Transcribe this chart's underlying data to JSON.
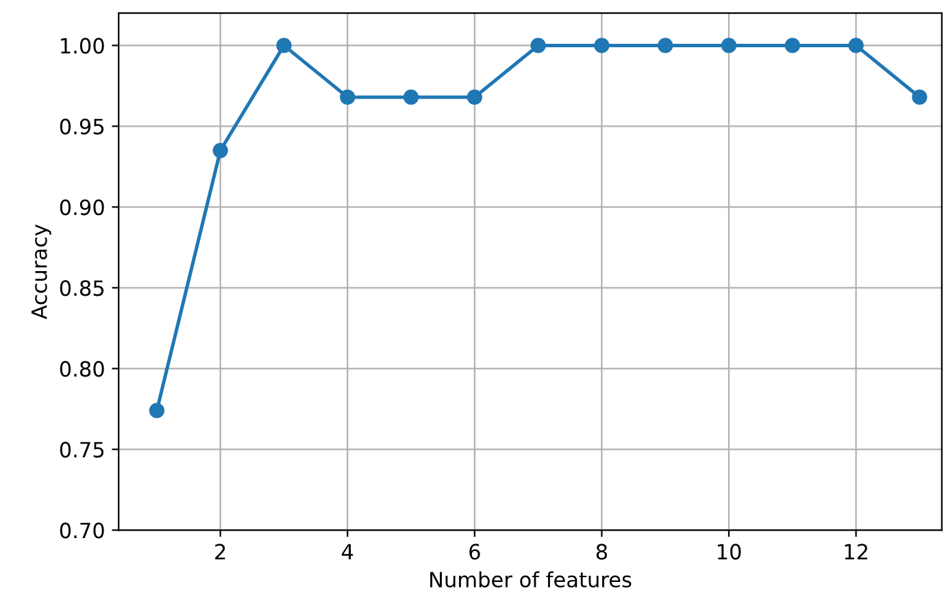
{
  "chart_data": {
    "type": "line",
    "xlabel": "Number of features",
    "ylabel": "Accuracy",
    "x": [
      1,
      2,
      3,
      4,
      5,
      6,
      7,
      8,
      9,
      10,
      11,
      12,
      13
    ],
    "series": [
      {
        "color": "#1f77b4",
        "values": [
          0.774,
          0.935,
          1.0,
          0.968,
          0.968,
          0.968,
          1.0,
          1.0,
          1.0,
          1.0,
          1.0,
          1.0,
          0.968
        ]
      }
    ],
    "xlim": [
      0.4,
      13.35
    ],
    "xticks": [
      2,
      4,
      6,
      8,
      10,
      12
    ],
    "ylim": [
      0.7,
      1.02
    ],
    "yticks": [
      {
        "value": 0.7,
        "label": "0.70"
      },
      {
        "value": 0.75,
        "label": "0.75"
      },
      {
        "value": 0.8,
        "label": "0.80"
      },
      {
        "value": 0.85,
        "label": "0.85"
      },
      {
        "value": 0.9,
        "label": "0.90"
      },
      {
        "value": 0.95,
        "label": "0.95"
      },
      {
        "value": 1.0,
        "label": "1.00"
      }
    ],
    "grid": true,
    "marker": "circle",
    "line_style": "solid"
  }
}
